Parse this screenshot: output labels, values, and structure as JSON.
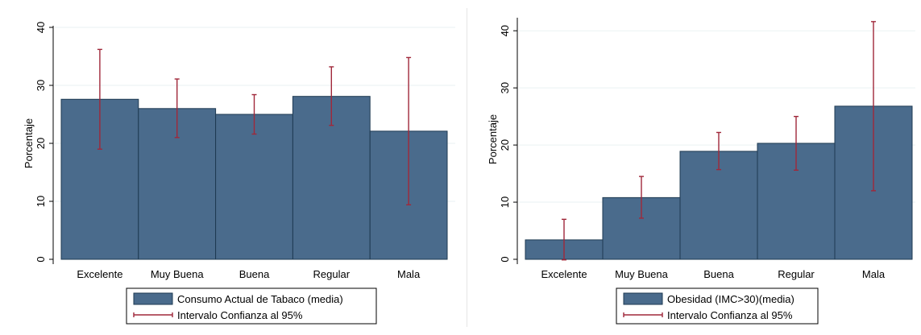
{
  "chart_data": [
    {
      "type": "bar",
      "categories": [
        "Excelente",
        "Muy Buena",
        "Buena",
        "Regular",
        "Mala"
      ],
      "series": [
        {
          "name": "Consumo Actual de Tabaco (media)",
          "values": [
            27.6,
            26.0,
            25.0,
            28.1,
            22.1
          ]
        }
      ],
      "error_bars": {
        "name": "Intervalo Confianza al 95%",
        "lower": [
          19.0,
          21.0,
          21.6,
          23.1,
          9.4
        ],
        "upper": [
          36.2,
          31.1,
          28.4,
          33.2,
          34.8
        ]
      },
      "ylabel": "Porcentaje",
      "xlabel": "",
      "ylim": [
        0,
        40
      ],
      "yticks": [
        0,
        10,
        20,
        30,
        40
      ],
      "grid": true,
      "legend": "bottom",
      "colors": {
        "bar": "#4a6b8c",
        "error": "#a0283a"
      }
    },
    {
      "type": "bar",
      "categories": [
        "Excelente",
        "Muy Buena",
        "Buena",
        "Regular",
        "Mala"
      ],
      "series": [
        {
          "name": "Obesidad (IMC>30)(media)",
          "values": [
            3.4,
            10.8,
            18.9,
            20.3,
            26.8
          ]
        }
      ],
      "error_bars": {
        "name": "Intervalo Confianza al 95%",
        "lower": [
          -0.1,
          7.2,
          15.7,
          15.6,
          12.0
        ],
        "upper": [
          7.0,
          14.5,
          22.2,
          25.0,
          41.6
        ]
      },
      "ylabel": "Porcentaje",
      "xlabel": "",
      "ylim": [
        0,
        42
      ],
      "yticks": [
        0,
        10,
        20,
        30,
        40
      ],
      "grid": true,
      "legend": "bottom",
      "colors": {
        "bar": "#4a6b8c",
        "error": "#a0283a"
      }
    }
  ]
}
